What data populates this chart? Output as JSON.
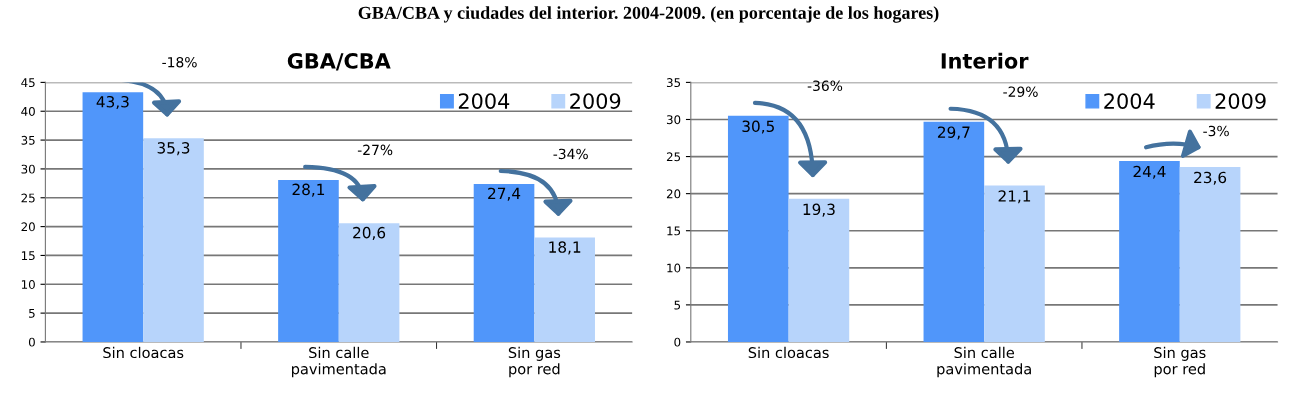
{
  "chart_data": [
    {
      "type": "bar",
      "title": "GBA/CBA",
      "categories": [
        "Sin cloacas",
        "Sin calle\npavimentada",
        "Sin gas\npor red"
      ],
      "series": [
        {
          "name": "2004",
          "color": "#5096fa",
          "values": [
            43.3,
            28.1,
            27.4
          ],
          "value_labels": [
            "43,3",
            "28,1",
            "27,4"
          ]
        },
        {
          "name": "2009",
          "color": "#b7d4fb",
          "values": [
            35.3,
            20.6,
            18.1
          ],
          "value_labels": [
            "35,3",
            "20,6",
            "18,1"
          ]
        }
      ],
      "ylim": [
        0,
        45
      ],
      "yticks": [
        0,
        5,
        10,
        15,
        20,
        25,
        30,
        35,
        40,
        45
      ],
      "grid": "y",
      "legend": "top right",
      "annotations": [
        "-18%",
        "-27%",
        "-34%",
        "GBA/CBA y ciudades del interior. 2004-2009. (en porcentaje de los hogares)"
      ]
    },
    {
      "type": "bar",
      "title": "Interior",
      "categories": [
        "Sin cloacas",
        "Sin calle\npavimentada",
        "Sin gas\npor red"
      ],
      "series": [
        {
          "name": "2004",
          "color": "#5096fa",
          "values": [
            30.5,
            29.7,
            24.4
          ],
          "value_labels": [
            "30,5",
            "29,7",
            "24,4"
          ]
        },
        {
          "name": "2009",
          "color": "#b7d4fb",
          "values": [
            19.3,
            21.1,
            23.6
          ],
          "value_labels": [
            "19,3",
            "21,1",
            "23,6"
          ]
        }
      ],
      "ylim": [
        0,
        35
      ],
      "yticks": [
        0,
        5,
        10,
        15,
        20,
        25,
        30,
        35
      ],
      "grid": "y",
      "legend": "top right",
      "annotations": [
        "-36%",
        "-29%",
        "-3%"
      ]
    }
  ]
}
